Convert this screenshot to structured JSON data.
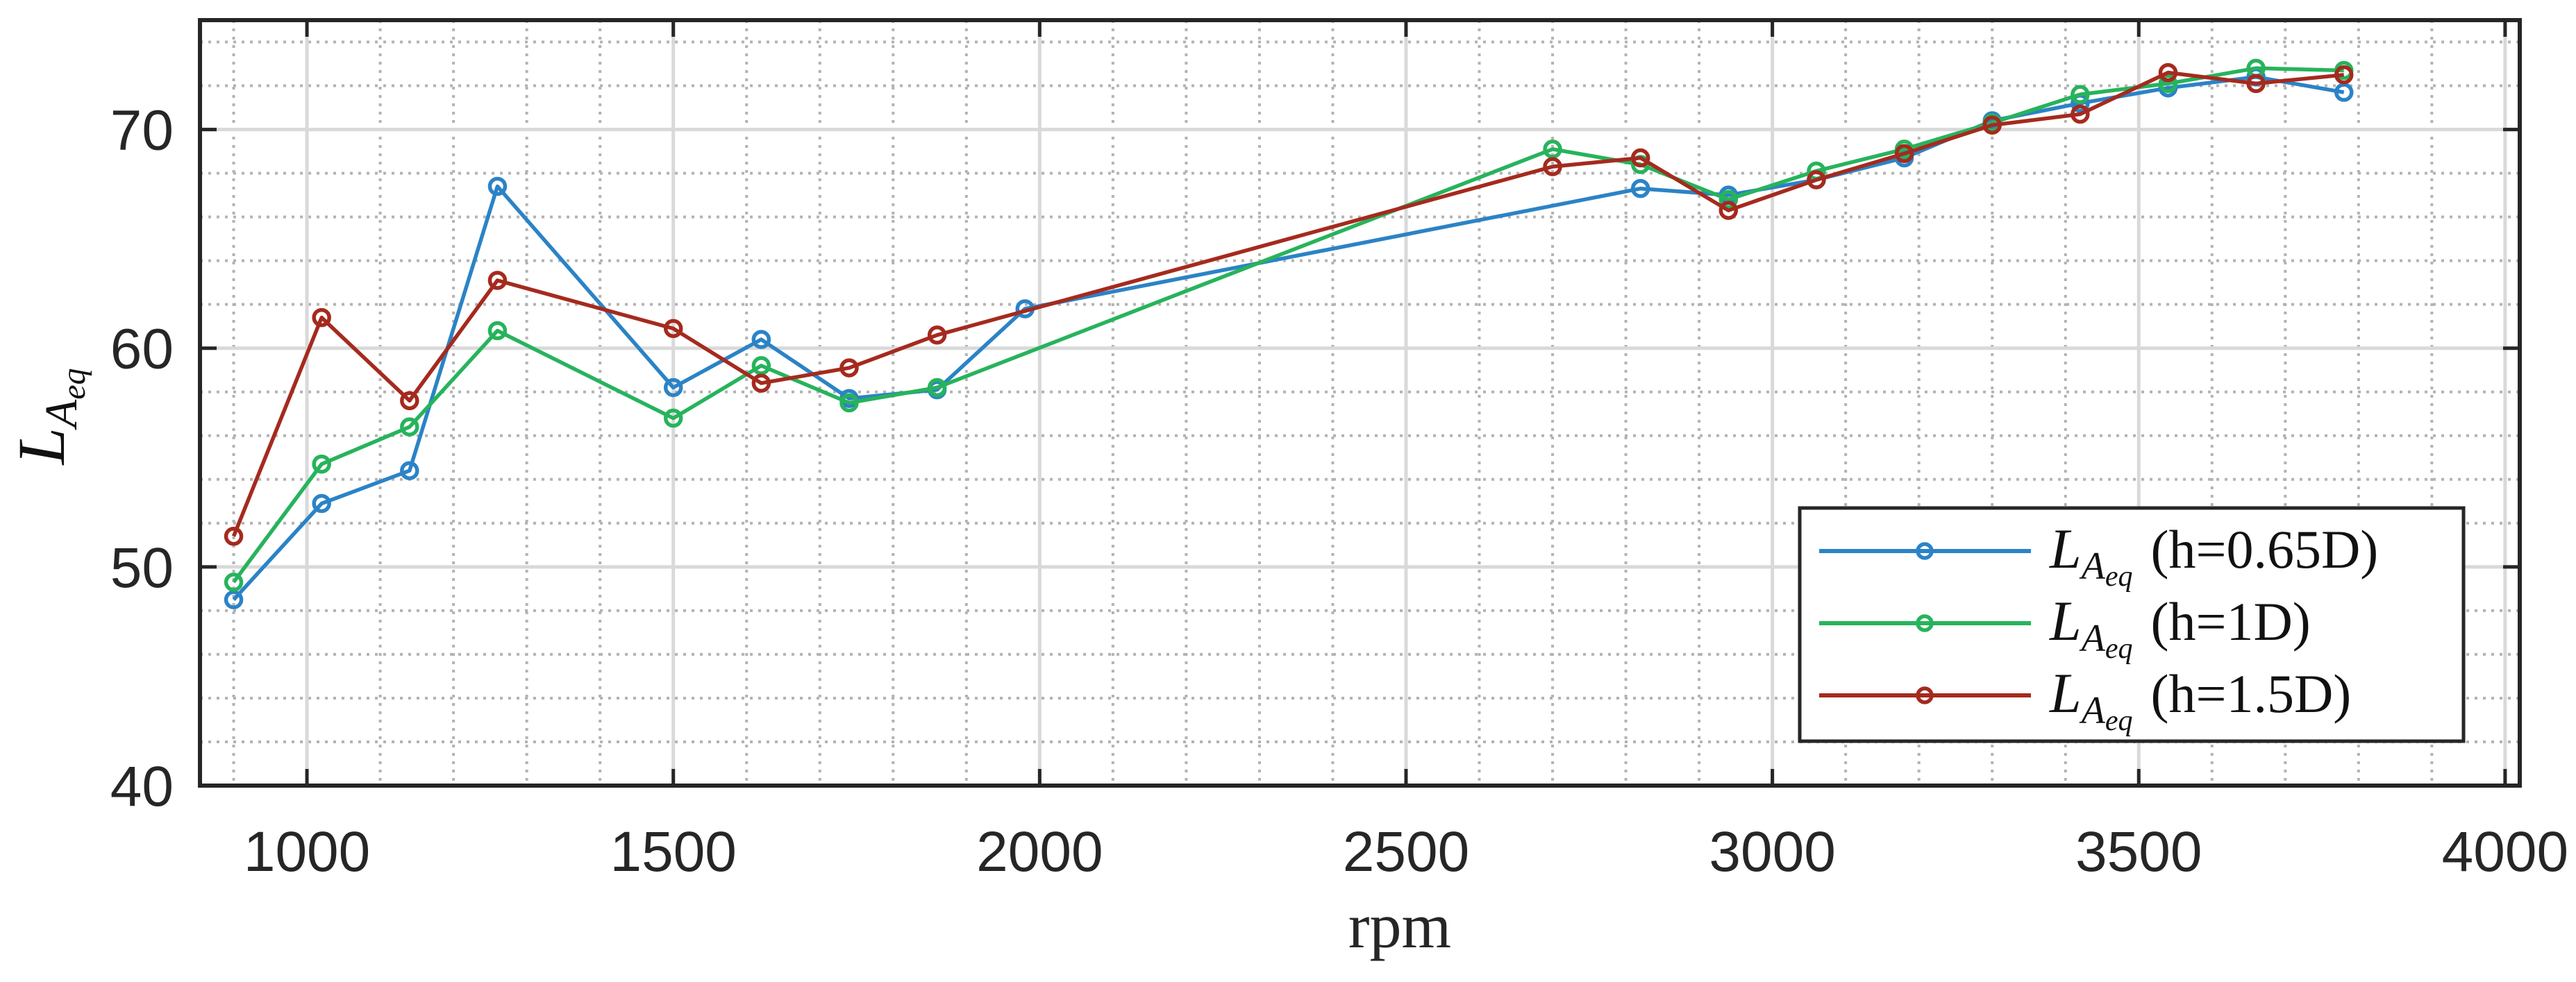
{
  "chart_data": {
    "type": "line",
    "title": "",
    "xlabel": "rpm",
    "ylabel": "L_{A_eq}",
    "ylabel_parts": {
      "main": "L",
      "sub": "A",
      "subsub": "eq"
    },
    "xlim": [
      854,
      4020
    ],
    "ylim": [
      40,
      75
    ],
    "xticks": [
      1000,
      1500,
      2000,
      2500,
      3000,
      3500,
      4000
    ],
    "yticks": [
      40,
      50,
      60,
      70
    ],
    "x_minor_step": 100,
    "y_minor_step": 2,
    "grid": {
      "major": true,
      "minor": true,
      "minor_style": "dotted"
    },
    "legend_position": "lower right",
    "marker": "open-circle",
    "series": [
      {
        "name": "L_{A_eq} (h=0.65D)",
        "legend_suffix": "(h=0.65D)",
        "color": "#2b83c6",
        "x": [
          900,
          1020,
          1140,
          1260,
          1500,
          1620,
          1740,
          1860,
          1980,
          2820,
          2940,
          3060,
          3180,
          3300,
          3420,
          3540,
          3660,
          3780
        ],
        "values": [
          48.5,
          52.9,
          54.4,
          67.4,
          58.2,
          60.4,
          57.7,
          58.1,
          61.8,
          67.3,
          67.0,
          67.7,
          68.7,
          70.4,
          71.2,
          71.9,
          72.4,
          71.7
        ]
      },
      {
        "name": "L_{A_eq} (h=1D)",
        "legend_suffix": "(h=1D)",
        "color": "#27b35c",
        "x": [
          900,
          1020,
          1140,
          1260,
          1500,
          1620,
          1740,
          1860,
          2700,
          2820,
          2940,
          3060,
          3180,
          3300,
          3420,
          3540,
          3660,
          3780
        ],
        "values": [
          49.3,
          54.7,
          56.4,
          60.8,
          56.8,
          59.2,
          57.5,
          58.2,
          69.1,
          68.4,
          66.8,
          68.1,
          69.1,
          70.3,
          71.6,
          72.1,
          72.8,
          72.7
        ]
      },
      {
        "name": "L_{A_eq} (h=1.5D)",
        "legend_suffix": "(h=1.5D)",
        "color": "#a52a1e",
        "x": [
          900,
          1020,
          1140,
          1260,
          1500,
          1620,
          1740,
          1860,
          2700,
          2820,
          2940,
          3060,
          3180,
          3300,
          3420,
          3540,
          3660,
          3780
        ],
        "values": [
          51.4,
          61.4,
          57.6,
          63.1,
          60.9,
          58.4,
          59.1,
          60.6,
          68.3,
          68.7,
          66.3,
          67.7,
          68.9,
          70.2,
          70.7,
          72.6,
          72.1,
          72.5
        ]
      }
    ]
  },
  "style": {
    "axis_color": "#262626",
    "major_grid_color": "#d9d9d9",
    "minor_grid_color": "#b3b3b3",
    "background": "#ffffff"
  }
}
